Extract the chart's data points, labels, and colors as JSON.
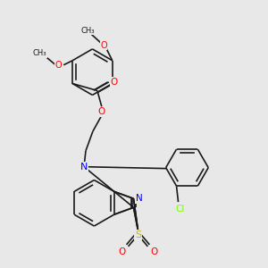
{
  "background_color": "#e8e8e8",
  "bond_color": "#1a1a1a",
  "atom_colors": {
    "O": "#ff0000",
    "N": "#0000ff",
    "S": "#c8b400",
    "Cl": "#7cfc00",
    "C": "#1a1a1a"
  },
  "fig_width": 3.0,
  "fig_height": 3.0,
  "dpi": 100
}
